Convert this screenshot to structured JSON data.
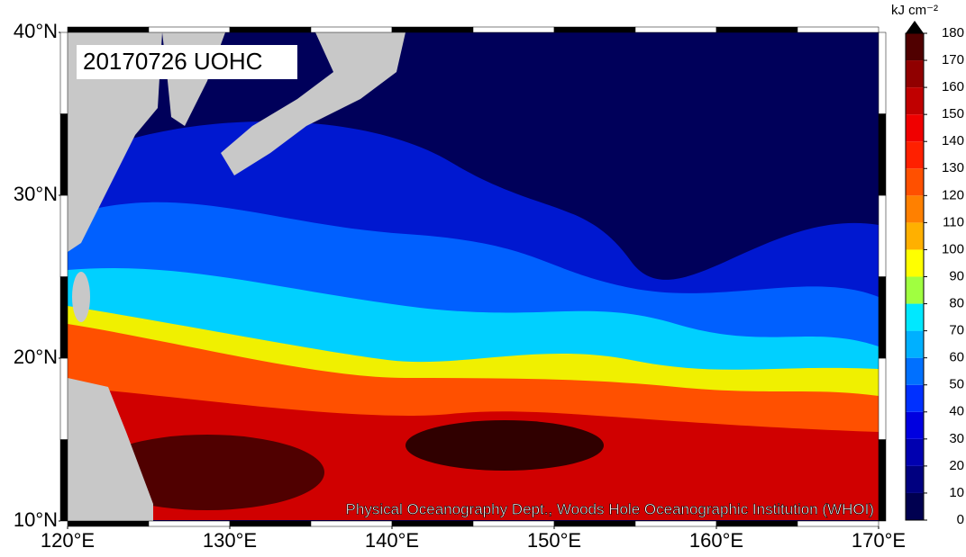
{
  "map": {
    "title": "20170726 UOHC",
    "credit": "Physical Oceanography Dept., Woods Hole Oceanographic Institution (WHOI)",
    "lat_ticks": [
      {
        "value": 10,
        "label": "10°N"
      },
      {
        "value": 20,
        "label": "20°N"
      },
      {
        "value": 30,
        "label": "30°N"
      },
      {
        "value": 40,
        "label": "40°N"
      }
    ],
    "lon_ticks": [
      {
        "value": 120,
        "label": "120°E"
      },
      {
        "value": 130,
        "label": "130°E"
      },
      {
        "value": 140,
        "label": "140°E"
      },
      {
        "value": 150,
        "label": "150°E"
      },
      {
        "value": 160,
        "label": "160°E"
      },
      {
        "value": 170,
        "label": "170°E"
      }
    ],
    "colorbar": {
      "unit": "kJ cm⁻²",
      "ticks": [
        0,
        10,
        20,
        30,
        40,
        50,
        60,
        70,
        80,
        90,
        100,
        110,
        120,
        130,
        140,
        150,
        160,
        170,
        180
      ],
      "colors": [
        "#000050",
        "#000080",
        "#0000b0",
        "#0000e0",
        "#0030ff",
        "#0070ff",
        "#00b0ff",
        "#00e8ff",
        "#a0ff40",
        "#ffff00",
        "#ffb000",
        "#ff8000",
        "#ff5000",
        "#ff2000",
        "#f00000",
        "#c00000",
        "#900000",
        "#500000"
      ],
      "over_color": "#000000"
    }
  }
}
